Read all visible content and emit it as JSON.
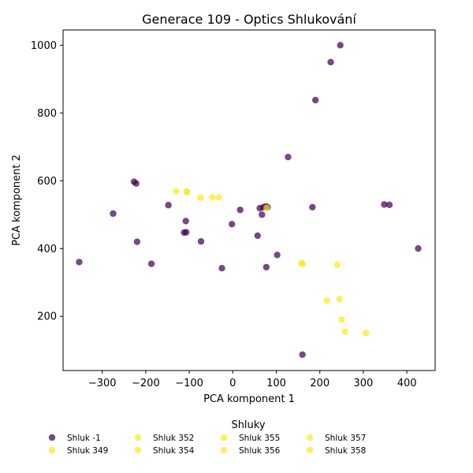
{
  "chart_data": {
    "type": "scatter",
    "title": "Generace 109 - Optics Shlukování",
    "xlabel": "PCA komponent 1",
    "ylabel": "PCA komponent 2",
    "xlim": [
      -390,
      465
    ],
    "ylim": [
      40,
      1045
    ],
    "xticks": [
      -300,
      -200,
      -100,
      0,
      100,
      200,
      300,
      400
    ],
    "yticks": [
      200,
      400,
      600,
      800,
      1000
    ],
    "grid": false,
    "legend": {
      "title": "Shluky",
      "placement": "bottom",
      "columns": 5
    },
    "series": [
      {
        "name": "Shluk -1",
        "color": "#440154",
        "points": [
          [
            247,
            1000
          ],
          [
            225,
            950
          ],
          [
            190,
            838
          ],
          [
            127,
            670
          ],
          [
            -227,
            597
          ],
          [
            -222,
            592
          ],
          [
            -275,
            503
          ],
          [
            -148,
            528
          ],
          [
            -108,
            481
          ],
          [
            -112,
            447
          ],
          [
            -107,
            448
          ],
          [
            -220,
            420
          ],
          [
            -187,
            355
          ],
          [
            -353,
            360
          ],
          [
            -73,
            421
          ],
          [
            -25,
            342
          ],
          [
            -2,
            472
          ],
          [
            17,
            514
          ],
          [
            62,
            519
          ],
          [
            70,
            522
          ],
          [
            76,
            524
          ],
          [
            80,
            522
          ],
          [
            67,
            500
          ],
          [
            57,
            438
          ],
          [
            102,
            381
          ],
          [
            77,
            345
          ],
          [
            183,
            522
          ],
          [
            348,
            530
          ],
          [
            360,
            529
          ],
          [
            426,
            400
          ],
          [
            160,
            87
          ]
        ]
      },
      {
        "name": "Shluk 349",
        "color": "#fde725",
        "points": [
          [
            78,
            520
          ]
        ]
      },
      {
        "name": "Shluk 352",
        "color": "#fde725",
        "points": [
          [
            -130,
            569
          ],
          [
            -106,
            568
          ],
          [
            -105,
            567
          ]
        ]
      },
      {
        "name": "Shluk 354",
        "color": "#fde725",
        "points": [
          [
            -74,
            550
          ],
          [
            -47,
            551
          ],
          [
            -32,
            551
          ]
        ]
      },
      {
        "name": "Shluk 355",
        "color": "#fde725",
        "points": [
          [
            158,
            357
          ],
          [
            160,
            355
          ],
          [
            240,
            352
          ]
        ]
      },
      {
        "name": "Shluk 356",
        "color": "#fde725",
        "points": [
          [
            216,
            246
          ],
          [
            245,
            251
          ]
        ]
      },
      {
        "name": "Shluk 357",
        "color": "#fde725",
        "points": [
          [
            250,
            190
          ],
          [
            258,
            155
          ]
        ]
      },
      {
        "name": "Shluk 358",
        "color": "#fde725",
        "points": [
          [
            306,
            151
          ]
        ]
      }
    ]
  }
}
